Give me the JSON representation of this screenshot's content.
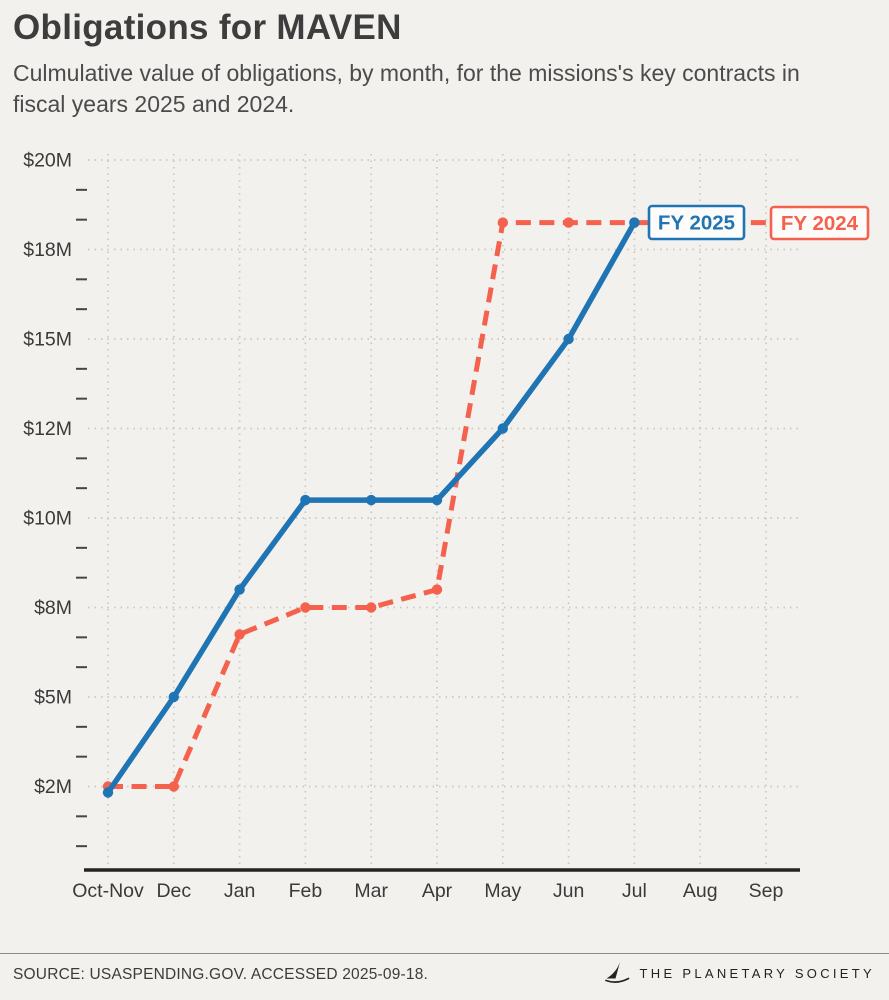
{
  "chart_data": {
    "type": "line",
    "title": "Obligations for MAVEN",
    "subtitle": "Culmulative value of obligations, by month, for the missions's key contracts in fiscal years 2025 and 2024.",
    "categories": [
      "Oct-Nov",
      "Dec",
      "Jan",
      "Feb",
      "Mar",
      "Apr",
      "May",
      "Jun",
      "Jul",
      "Aug",
      "Sep"
    ],
    "xlabel": "",
    "ylabel": "",
    "unit": "USD millions",
    "y_ticks": [
      "$20M",
      "$18M",
      "$15M",
      "$12M",
      "$10M",
      "$8M",
      "$5M",
      "$2M"
    ],
    "y_tick_values": [
      20,
      18,
      15,
      12,
      10,
      8,
      5,
      2
    ],
    "ylim": [
      0,
      20
    ],
    "grid": true,
    "legend": "inline-end-labels",
    "series": [
      {
        "name": "FY 2025",
        "color": "#1f74b4",
        "dash": false,
        "values": [
          1.8,
          5.0,
          8.4,
          10.4,
          10.4,
          10.4,
          12.0,
          15.0,
          18.6
        ]
      },
      {
        "name": "FY 2024",
        "color": "#f4614d",
        "dash": true,
        "extend_flat_to_end": true,
        "values": [
          2.0,
          2.0,
          7.1,
          8.0,
          8.0,
          8.4,
          18.6,
          18.6,
          18.6
        ]
      }
    ],
    "annotations": [
      {
        "text": "FY 2025",
        "color": "#1f74b4"
      },
      {
        "text": "FY 2024",
        "color": "#f4614d"
      }
    ]
  },
  "footer": {
    "source": "SOURCE: USASPENDING.GOV. ACCESSED 2025-09-18.",
    "brand": "THE PLANETARY SOCIETY",
    "logo_icon": "planetary-society-logo"
  }
}
